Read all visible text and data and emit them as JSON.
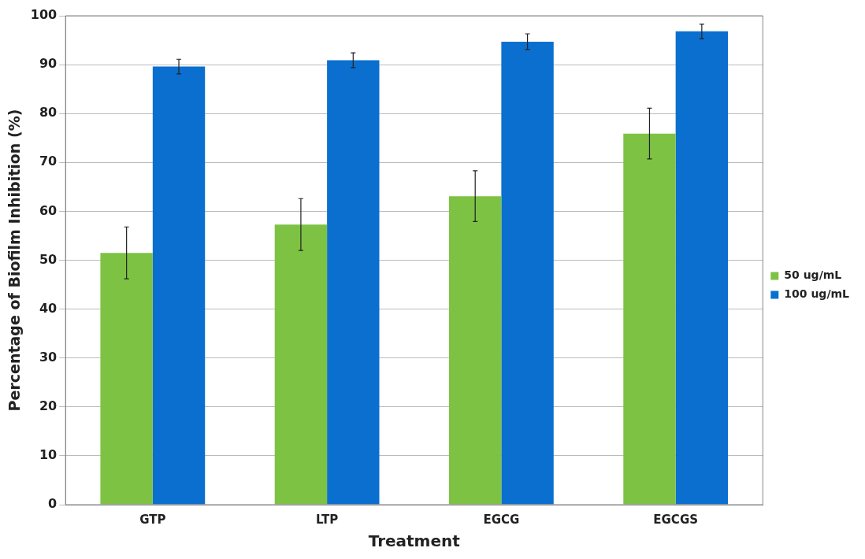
{
  "chart_data": {
    "type": "bar",
    "xlabel": "Treatment",
    "ylabel": "Percentage of Biofilm Inhibition (%)",
    "categories": [
      "GTP",
      "LTP",
      "EGCG",
      "EGCGS"
    ],
    "series": [
      {
        "name": "50 ug/mL",
        "color": "#7dc243",
        "values": [
          51.5,
          57.3,
          63.1,
          75.9
        ],
        "errors": [
          5.3,
          5.3,
          5.2,
          5.2
        ]
      },
      {
        "name": "100 ug/mL",
        "color": "#0a6fcf",
        "values": [
          89.6,
          90.9,
          94.7,
          96.8
        ],
        "errors": [
          1.5,
          1.5,
          1.6,
          1.5
        ]
      }
    ],
    "ylim": [
      0,
      100
    ],
    "yticks": [
      0,
      10,
      20,
      30,
      40,
      50,
      60,
      70,
      80,
      90,
      100
    ],
    "grid": "y",
    "legend": "right"
  }
}
